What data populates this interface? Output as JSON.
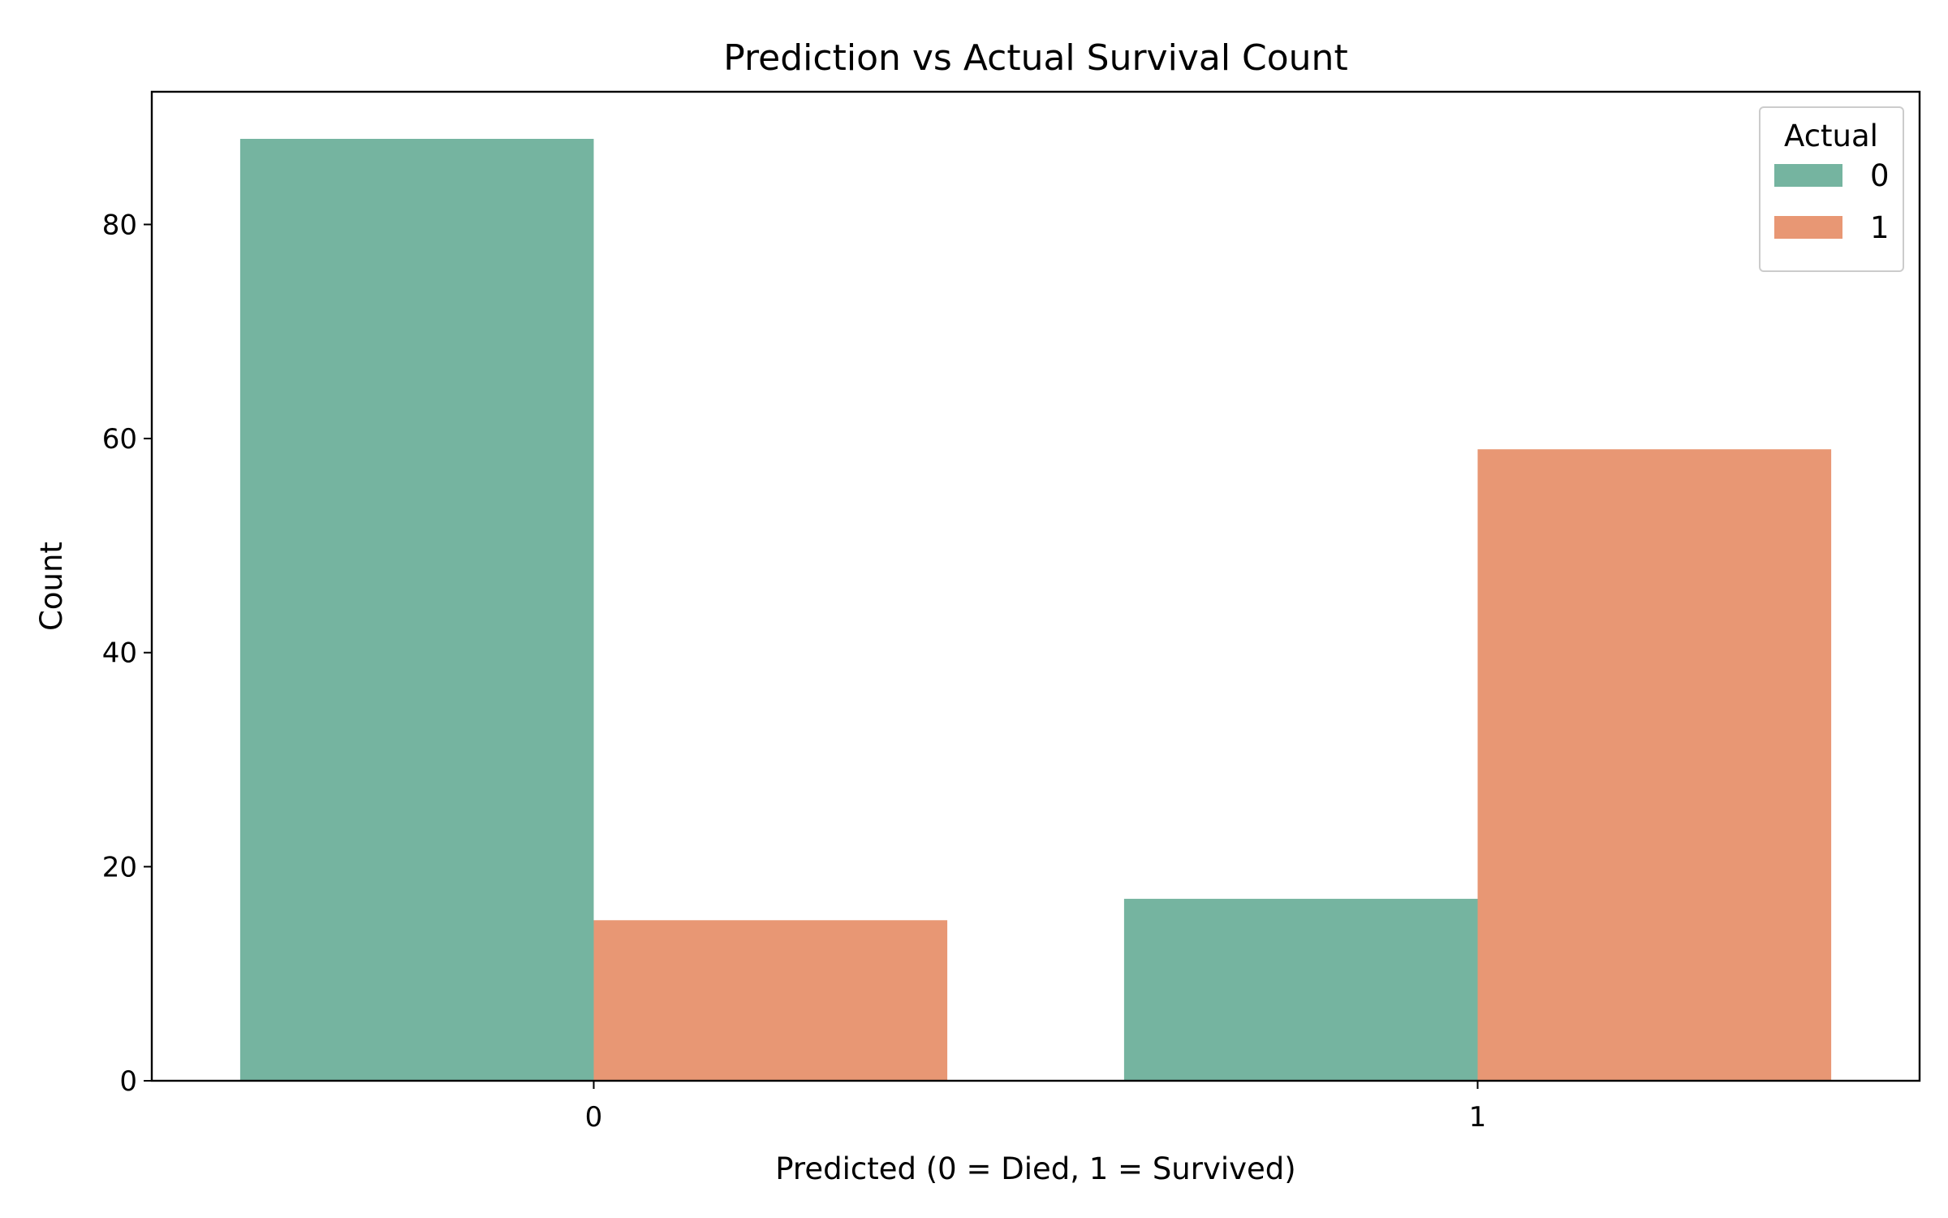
{
  "chart_data": {
    "type": "bar",
    "title": "Prediction vs Actual Survival Count",
    "xlabel": "Predicted (0 = Died, 1 = Survived)",
    "ylabel": "Count",
    "categories": [
      "0",
      "1"
    ],
    "series": [
      {
        "name": "0",
        "color": "#75b4a0",
        "values": [
          88,
          17
        ]
      },
      {
        "name": "1",
        "color": "#e89774",
        "values": [
          15,
          59
        ]
      }
    ],
    "ylim": [
      0,
      92.4
    ],
    "yticks": [
      0,
      20,
      40,
      60,
      80
    ],
    "legend": {
      "title": "Actual",
      "position": "top-right"
    },
    "grid": false
  }
}
